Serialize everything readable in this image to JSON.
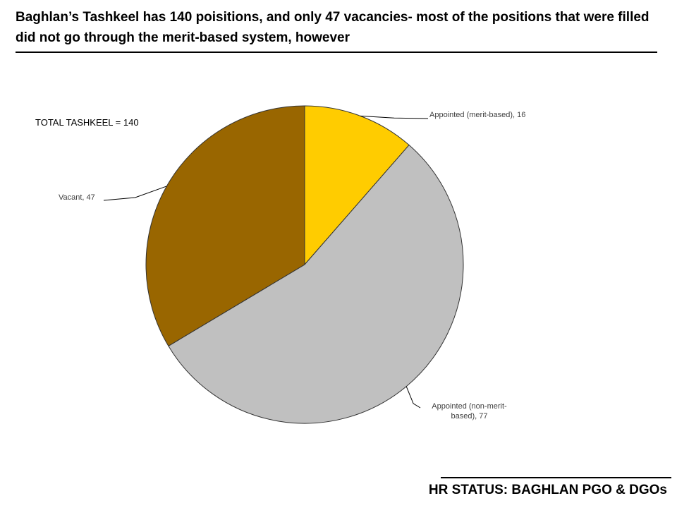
{
  "title": "Baghlan’s Tashkeel has 140 poisitions, and only 47 vacancies- most of the positions that were filled did not go through the merit-based system, however",
  "footer": "HR STATUS: BAGHLAN PGO & DGOs",
  "chart_data": {
    "type": "pie",
    "annotation": "TOTAL TASHKEEL = 140",
    "values": [
      16,
      77,
      47
    ],
    "value_labels": [
      "Appointed (merit-based), 16",
      "Appointed (non-merit-based), 77",
      "Vacant, 47"
    ],
    "colors": [
      "#ffcc00",
      "#c0c0c0",
      "#996600"
    ]
  }
}
